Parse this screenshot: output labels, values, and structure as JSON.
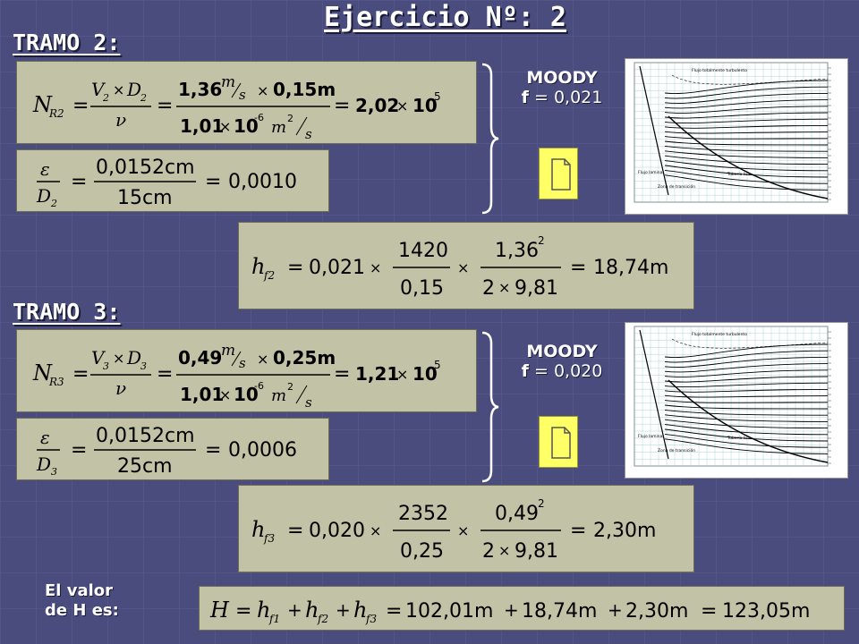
{
  "title": "Ejercicio Nº: 2",
  "tramo2": {
    "heading": "TRAMO 2:",
    "reynolds": {
      "lhs": "N",
      "lhs_sub": "R2",
      "v": "V",
      "v_sub": "2",
      "d": "D",
      "d_sub": "2",
      "nu": "ν",
      "num_a": "1,36",
      "num_u1": "m",
      "num_u2": "s",
      "num_b": "0,15m",
      "den_a": "1,01",
      "den_b": "10",
      "den_exp": "-6",
      "den_u1": "m",
      "den_u2": "2",
      "den_u3": "s",
      "result": "2,02",
      "pow": "10",
      "pow_exp": "5"
    },
    "roughness": {
      "eps": "ε",
      "d": "D",
      "d_sub": "2",
      "num": "0,0152cm",
      "den": "15cm",
      "result": "0,0010"
    },
    "moody_label": "MOODY",
    "f_label": "f",
    "f_value": "= 0,021",
    "headloss": {
      "h": "h",
      "sub": "f2",
      "f": "0,021",
      "L": "1420",
      "D": "0,15",
      "V": "1,36",
      "V_exp": "2",
      "two": "2",
      "g": "9,81",
      "result": "18,74m"
    }
  },
  "tramo3": {
    "heading": "TRAMO 3:",
    "reynolds": {
      "lhs": "N",
      "lhs_sub": "R3",
      "v": "V",
      "v_sub": "3",
      "d": "D",
      "d_sub": "3",
      "nu": "ν",
      "num_a": "0,49",
      "num_u1": "m",
      "num_u2": "s",
      "num_b": "0,25m",
      "den_a": "1,01",
      "den_b": "10",
      "den_exp": "-6",
      "den_u1": "m",
      "den_u2": "2",
      "den_u3": "s",
      "result": "1,21",
      "pow": "10",
      "pow_exp": "5"
    },
    "roughness": {
      "eps": "ε",
      "d": "D",
      "d_sub": "3",
      "num": "0,0152cm",
      "den": "25cm",
      "result": "0,0006"
    },
    "moody_label": "MOODY",
    "f_label": "f",
    "f_value": "= 0,020",
    "headloss": {
      "h": "h",
      "sub": "f3",
      "f": "0,020",
      "L": "2352",
      "D": "0,25",
      "V": "0,49",
      "V_exp": "2",
      "two": "2",
      "g": "9,81",
      "result": "2,30m"
    }
  },
  "total": {
    "label_line1": "El valor",
    "label_line2": "de H es:",
    "H": "H",
    "h1": "h",
    "h1_sub": "f1",
    "h2": "h",
    "h2_sub": "f2",
    "h3": "h",
    "h3_sub": "f3",
    "v1": "102,01m",
    "v2": "18,74m",
    "v3": "2,30m",
    "result": "123,05m"
  },
  "chart_labels": {
    "top": "Flujo totalmente turbulento",
    "laminar": "Flujo laminar",
    "transition": "Zona de transición",
    "smooth": "Tubería lisa"
  },
  "colors": {
    "background": "#4a4c7e",
    "box": "#c2c2a7",
    "doc": "#ffff66"
  }
}
